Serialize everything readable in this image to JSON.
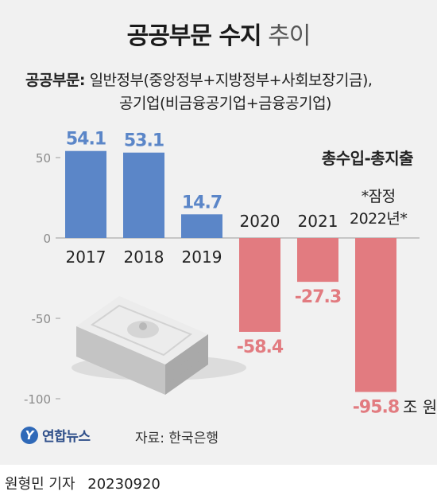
{
  "title": {
    "bold": "공공부문 수지",
    "light": "추이"
  },
  "note": {
    "label": "공공부문:",
    "line1": "일반정부(중앙정부+지방정부+사회보장기금),",
    "line2": "공기업(비금융공기업+금융공기업)"
  },
  "series_label": "총수입-총지출",
  "provisional_note": {
    "line1": "*잠정",
    "line2": "2022년*"
  },
  "unit": "조 원",
  "source": "자료: 한국은행",
  "logo": {
    "mark": "Y",
    "text": "연합뉴스"
  },
  "byline": {
    "author": "원형민 기자",
    "date": "20230920"
  },
  "colors": {
    "positive": "#5b86c8",
    "negative": "#e27b80",
    "background": "#f1f1f1"
  },
  "chart_data": {
    "type": "bar",
    "title": "공공부문 수지 추이",
    "categories": [
      "2017",
      "2018",
      "2019",
      "2020",
      "2021",
      "2022"
    ],
    "category_labels": [
      "2017",
      "2018",
      "2019",
      "2020",
      "2021",
      ""
    ],
    "values": [
      54.1,
      53.1,
      14.7,
      -58.4,
      -27.3,
      -95.8
    ],
    "value_labels": [
      "54.1",
      "53.1",
      "14.7",
      "-58.4",
      "-27.3",
      "-95.8"
    ],
    "yticks": [
      50,
      0,
      -50,
      -100
    ],
    "ytick_labels": [
      "50",
      "0",
      "-50",
      "-100"
    ],
    "ylim": [
      -100,
      60
    ],
    "ylabel": "",
    "xlabel": "",
    "grid": false
  }
}
